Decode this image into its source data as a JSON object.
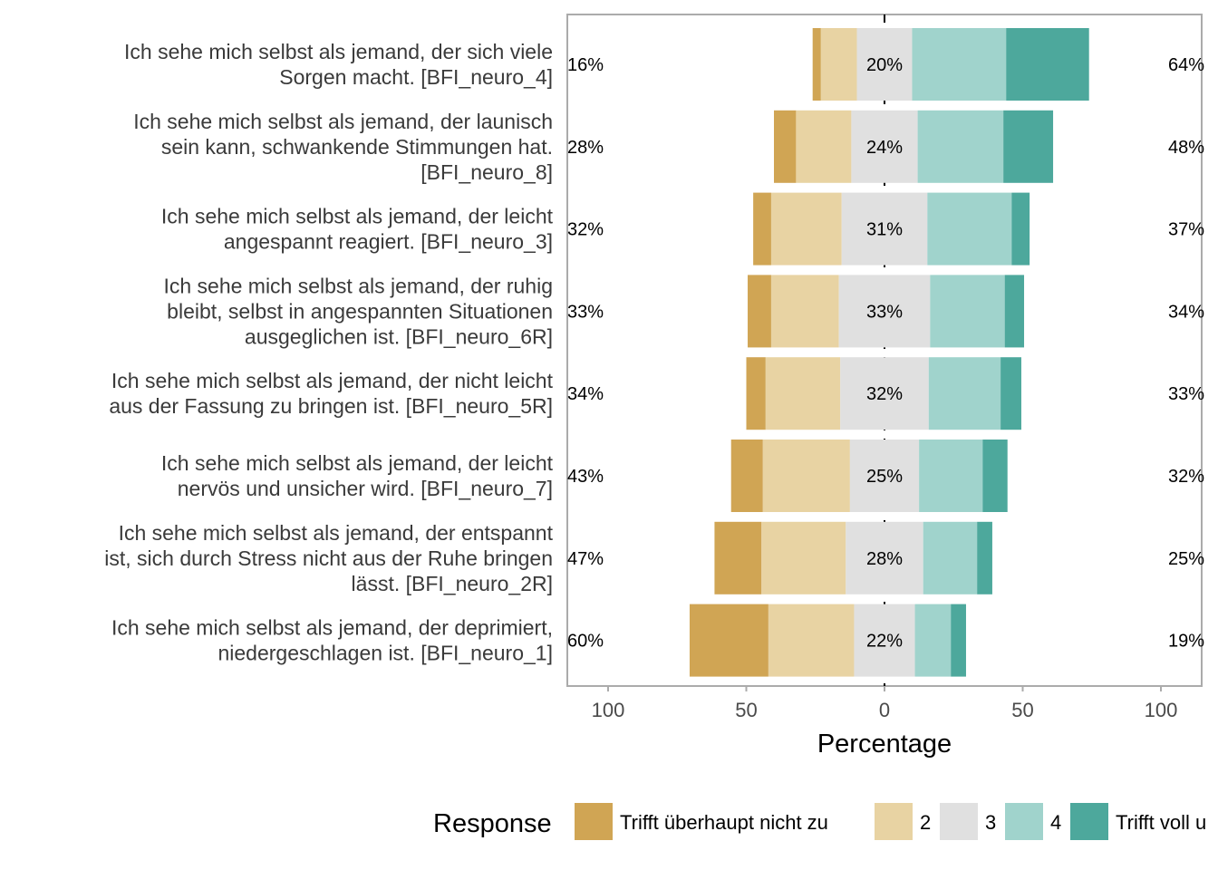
{
  "chart_data": {
    "type": "bar",
    "subtype": "diverging-stacked-likert",
    "xlabel": "Percentage",
    "xlim": [
      -100,
      100
    ],
    "x_ticks": [
      -100,
      -50,
      0,
      50,
      100
    ],
    "x_tick_labels": [
      "100",
      "50",
      "0",
      "50",
      "100"
    ],
    "legend": {
      "title": "Response",
      "position": "bottom",
      "entries": [
        "Trifft überhaupt nicht zu",
        "2",
        "3",
        "4",
        "Trifft voll u"
      ]
    },
    "colors": [
      "#D0A554",
      "#E8D3A3",
      "#E0E0E0",
      "#A0D3CC",
      "#4DA89C"
    ],
    "items": [
      {
        "label": [
          "Ich sehe mich selbst als jemand, der sich viele",
          "Sorgen macht. [BFI_neuro_4]"
        ],
        "values": [
          3,
          13,
          20,
          34,
          30
        ],
        "low": "16%",
        "neutral": "20%",
        "high": "64%"
      },
      {
        "label": [
          "Ich sehe mich selbst als jemand, der launisch",
          "sein kann, schwankende Stimmungen hat.",
          "[BFI_neuro_8]"
        ],
        "values": [
          8,
          20,
          24,
          31,
          18
        ],
        "low": "28%",
        "neutral": "24%",
        "high": "48%"
      },
      {
        "label": [
          "Ich sehe mich selbst als jemand, der leicht",
          "angespannt reagiert. [BFI_neuro_3]"
        ],
        "values": [
          6.5,
          25.5,
          31,
          30.5,
          6.5
        ],
        "low": "32%",
        "neutral": "31%",
        "high": "37%"
      },
      {
        "label": [
          "Ich sehe mich selbst als jemand, der ruhig",
          "bleibt, selbst in angespannten Situationen",
          "ausgeglichen ist. [BFI_neuro_6R]"
        ],
        "values": [
          8.5,
          24.5,
          33,
          27,
          7
        ],
        "low": "33%",
        "neutral": "33%",
        "high": "34%"
      },
      {
        "label": [
          "Ich sehe mich selbst als jemand, der nicht leicht",
          "aus der Fassung zu bringen ist. [BFI_neuro_5R]"
        ],
        "values": [
          7,
          27,
          32,
          26,
          7.5
        ],
        "low": "34%",
        "neutral": "32%",
        "high": "33%"
      },
      {
        "label": [
          "Ich sehe mich selbst als jemand, der leicht",
          "nervös und unsicher wird. [BFI_neuro_7]"
        ],
        "values": [
          11.5,
          31.5,
          25,
          23,
          9
        ],
        "low": "43%",
        "neutral": "25%",
        "high": "32%"
      },
      {
        "label": [
          "Ich sehe mich selbst als jemand, der entspannt",
          "ist, sich durch Stress nicht aus der Ruhe bringen",
          "lässt. [BFI_neuro_2R]"
        ],
        "values": [
          17,
          30.5,
          28,
          19.5,
          5.5
        ],
        "low": "47%",
        "neutral": "28%",
        "high": "25%"
      },
      {
        "label": [
          "Ich sehe mich selbst als jemand, der deprimiert,",
          "niedergeschlagen ist. [BFI_neuro_1]"
        ],
        "values": [
          28.5,
          31,
          22,
          13,
          5.5
        ],
        "low": "60%",
        "neutral": "22%",
        "high": "19%"
      }
    ]
  }
}
